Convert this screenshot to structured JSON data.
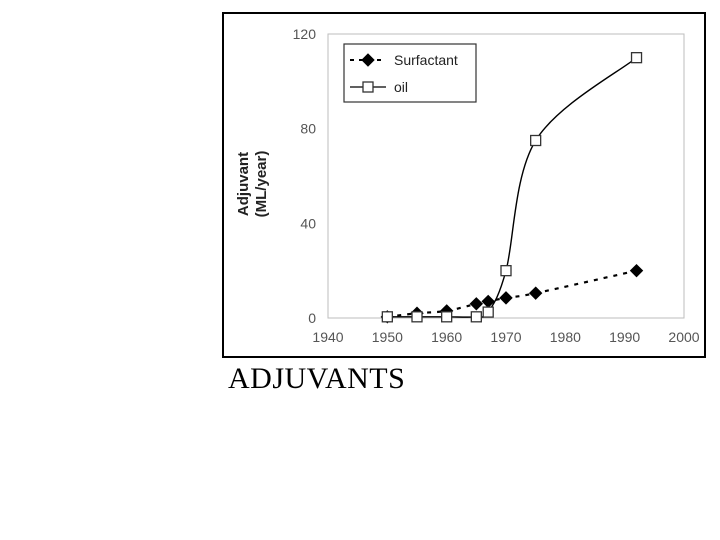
{
  "caption": "ADJUVANTS",
  "chart_data": {
    "type": "line",
    "title": "",
    "xlabel": "",
    "ylabel": "Adjuvant (ML/year)",
    "ylabel_lines": [
      "Adjuvant",
      "(ML/year)"
    ],
    "xlim": [
      1940,
      2000
    ],
    "ylim": [
      0,
      120
    ],
    "xticks": [
      1940,
      1950,
      1960,
      1970,
      1980,
      1990,
      2000
    ],
    "yticks": [
      0,
      40,
      80,
      120
    ],
    "grid": false,
    "legend_position": "top-right",
    "series": [
      {
        "name": "Surfactant",
        "marker": "filled-diamond",
        "line_style": "dashed",
        "color": "#000000",
        "x": [
          1950,
          1955,
          1960,
          1965,
          1967,
          1970,
          1975,
          1992
        ],
        "y": [
          0.5,
          2,
          3,
          6,
          7,
          8.5,
          10.5,
          20
        ]
      },
      {
        "name": "oil",
        "marker": "open-square",
        "line_style": "solid",
        "color": "#000000",
        "x": [
          1950,
          1955,
          1960,
          1965,
          1967,
          1970,
          1975,
          1992
        ],
        "y": [
          0.5,
          0.5,
          0.5,
          0.5,
          2.5,
          20,
          75,
          110
        ]
      }
    ]
  }
}
